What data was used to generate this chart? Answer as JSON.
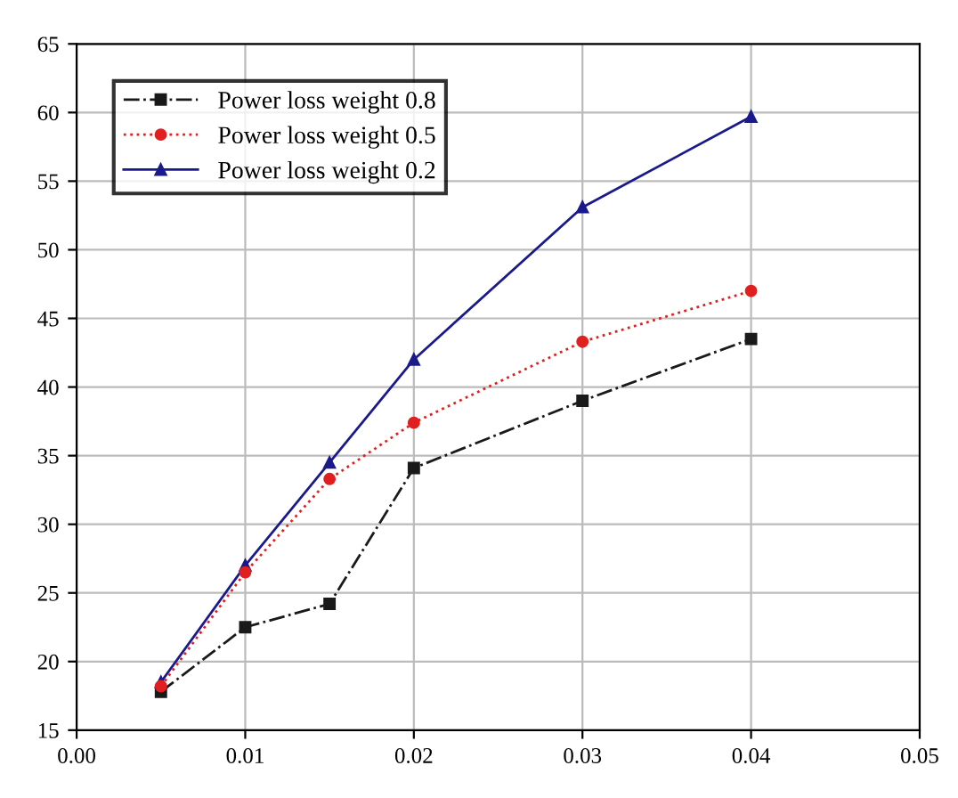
{
  "chart_data": {
    "type": "line",
    "x": [
      0.005,
      0.01,
      0.015,
      0.02,
      0.03,
      0.04
    ],
    "series": [
      {
        "name": "Power loss weight 0.8",
        "color": "#1a1a1a",
        "values": [
          17.8,
          22.5,
          24.2,
          34.1,
          39.0,
          43.5
        ],
        "marker": "square",
        "line_style": "dashdot"
      },
      {
        "name": "Power loss weight 0.5",
        "color": "#e02020",
        "values": [
          18.2,
          26.5,
          33.3,
          37.4,
          43.3,
          47.0
        ],
        "marker": "circle",
        "line_style": "dotted"
      },
      {
        "name": "Power loss weight 0.2",
        "color": "#1a1a8c",
        "values": [
          18.5,
          27.0,
          34.5,
          42.0,
          53.1,
          59.7
        ],
        "marker": "triangle",
        "line_style": "solid"
      }
    ],
    "xlim": [
      0.0,
      0.05
    ],
    "xticks": [
      {
        "value": 0.0,
        "label": "0.00"
      },
      {
        "value": 0.01,
        "label": "0.01"
      },
      {
        "value": 0.02,
        "label": "0.02"
      },
      {
        "value": 0.03,
        "label": "0.03"
      },
      {
        "value": 0.04,
        "label": "0.04"
      },
      {
        "value": 0.05,
        "label": "0.05"
      }
    ],
    "ylim": [
      15,
      65
    ],
    "yticks": [
      15,
      20,
      25,
      30,
      35,
      40,
      45,
      50,
      55,
      60,
      65
    ],
    "grid": true,
    "legend": "top left"
  }
}
